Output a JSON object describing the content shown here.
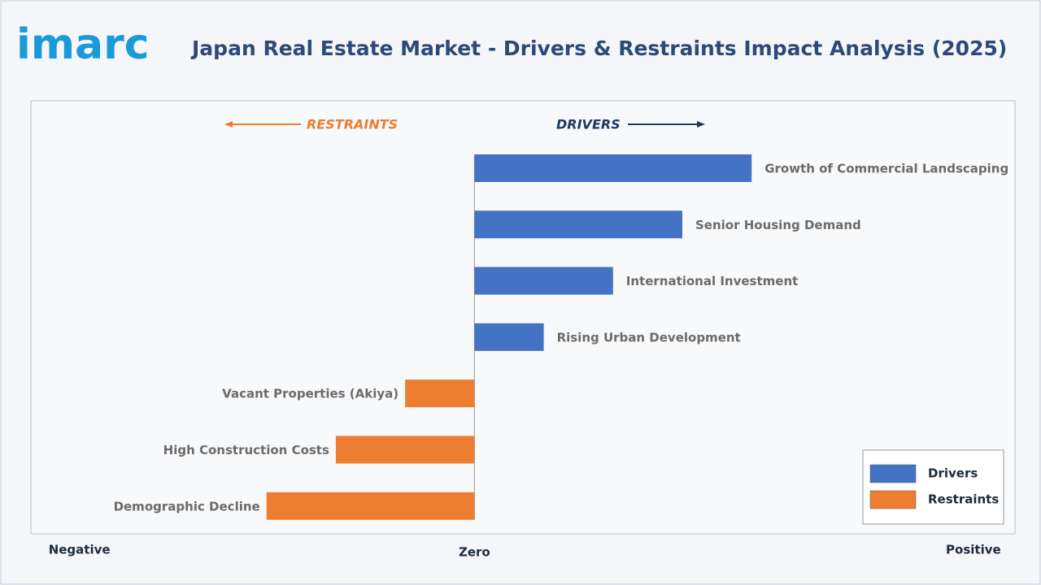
{
  "logo": "imarc",
  "chart_data": {
    "type": "diverging-bar",
    "title": "Japan Real Estate Market - Drivers & Restraints Impact Analysis (2025)",
    "annotations": [
      "RESTRAINTS",
      "DRIVERS"
    ],
    "categories": [
      "Growth of Commercial Landscaping",
      "Senior Housing Demand",
      "International Investment",
      "Rising Urban Development",
      "Vacant Properties (Akiya)",
      "High Construction Costs",
      "Demographic Decline"
    ],
    "series": [
      {
        "name": "Drivers",
        "color": "#4472c4",
        "values": [
          4,
          3,
          2,
          1,
          null,
          null,
          null
        ]
      },
      {
        "name": "Restraints",
        "color": "#ed7d31",
        "values": [
          null,
          null,
          null,
          null,
          -1,
          -2,
          -3
        ]
      }
    ],
    "xlim": [
      -6.4,
      7.8
    ],
    "xticks": [
      {
        "value": -5.7,
        "label": "Negative"
      },
      {
        "value": 0,
        "label": "Zero"
      },
      {
        "value": 7.2,
        "label": "Positive"
      }
    ],
    "legend": "bottom-right"
  }
}
